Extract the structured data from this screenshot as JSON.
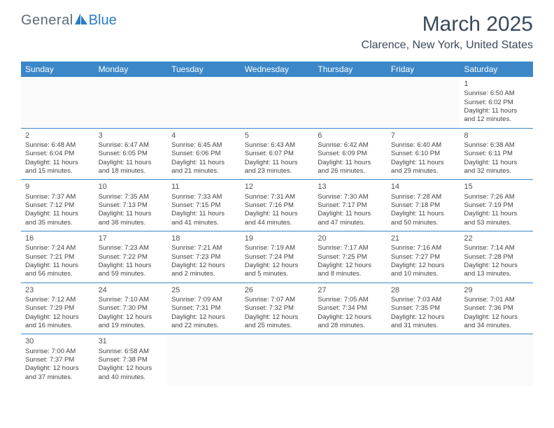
{
  "logo": {
    "general": "General",
    "blue": "Blue"
  },
  "title": "March 2025",
  "location": "Clarence, New York, United States",
  "headers": [
    "Sunday",
    "Monday",
    "Tuesday",
    "Wednesday",
    "Thursday",
    "Friday",
    "Saturday"
  ],
  "colors": {
    "header_bg": "#3b87c8",
    "header_text": "#ffffff",
    "border": "#3b87c8",
    "title_color": "#3a4a5a",
    "body_text": "#444444",
    "logo_gray": "#5b6a78",
    "logo_blue": "#2c7bc4"
  },
  "weeks": [
    [
      {
        "empty": true
      },
      {
        "empty": true
      },
      {
        "empty": true
      },
      {
        "empty": true
      },
      {
        "empty": true
      },
      {
        "empty": true
      },
      {
        "day": "1",
        "sunrise": "Sunrise: 6:50 AM",
        "sunset": "Sunset: 6:02 PM",
        "daylight1": "Daylight: 11 hours",
        "daylight2": "and 12 minutes."
      }
    ],
    [
      {
        "day": "2",
        "sunrise": "Sunrise: 6:48 AM",
        "sunset": "Sunset: 6:04 PM",
        "daylight1": "Daylight: 11 hours",
        "daylight2": "and 15 minutes."
      },
      {
        "day": "3",
        "sunrise": "Sunrise: 6:47 AM",
        "sunset": "Sunset: 6:05 PM",
        "daylight1": "Daylight: 11 hours",
        "daylight2": "and 18 minutes."
      },
      {
        "day": "4",
        "sunrise": "Sunrise: 6:45 AM",
        "sunset": "Sunset: 6:06 PM",
        "daylight1": "Daylight: 11 hours",
        "daylight2": "and 21 minutes."
      },
      {
        "day": "5",
        "sunrise": "Sunrise: 6:43 AM",
        "sunset": "Sunset: 6:07 PM",
        "daylight1": "Daylight: 11 hours",
        "daylight2": "and 23 minutes."
      },
      {
        "day": "6",
        "sunrise": "Sunrise: 6:42 AM",
        "sunset": "Sunset: 6:09 PM",
        "daylight1": "Daylight: 11 hours",
        "daylight2": "and 26 minutes."
      },
      {
        "day": "7",
        "sunrise": "Sunrise: 6:40 AM",
        "sunset": "Sunset: 6:10 PM",
        "daylight1": "Daylight: 11 hours",
        "daylight2": "and 29 minutes."
      },
      {
        "day": "8",
        "sunrise": "Sunrise: 6:38 AM",
        "sunset": "Sunset: 6:11 PM",
        "daylight1": "Daylight: 11 hours",
        "daylight2": "and 32 minutes."
      }
    ],
    [
      {
        "day": "9",
        "sunrise": "Sunrise: 7:37 AM",
        "sunset": "Sunset: 7:12 PM",
        "daylight1": "Daylight: 11 hours",
        "daylight2": "and 35 minutes."
      },
      {
        "day": "10",
        "sunrise": "Sunrise: 7:35 AM",
        "sunset": "Sunset: 7:13 PM",
        "daylight1": "Daylight: 11 hours",
        "daylight2": "and 38 minutes."
      },
      {
        "day": "11",
        "sunrise": "Sunrise: 7:33 AM",
        "sunset": "Sunset: 7:15 PM",
        "daylight1": "Daylight: 11 hours",
        "daylight2": "and 41 minutes."
      },
      {
        "day": "12",
        "sunrise": "Sunrise: 7:31 AM",
        "sunset": "Sunset: 7:16 PM",
        "daylight1": "Daylight: 11 hours",
        "daylight2": "and 44 minutes."
      },
      {
        "day": "13",
        "sunrise": "Sunrise: 7:30 AM",
        "sunset": "Sunset: 7:17 PM",
        "daylight1": "Daylight: 11 hours",
        "daylight2": "and 47 minutes."
      },
      {
        "day": "14",
        "sunrise": "Sunrise: 7:28 AM",
        "sunset": "Sunset: 7:18 PM",
        "daylight1": "Daylight: 11 hours",
        "daylight2": "and 50 minutes."
      },
      {
        "day": "15",
        "sunrise": "Sunrise: 7:26 AM",
        "sunset": "Sunset: 7:19 PM",
        "daylight1": "Daylight: 11 hours",
        "daylight2": "and 53 minutes."
      }
    ],
    [
      {
        "day": "16",
        "sunrise": "Sunrise: 7:24 AM",
        "sunset": "Sunset: 7:21 PM",
        "daylight1": "Daylight: 11 hours",
        "daylight2": "and 56 minutes."
      },
      {
        "day": "17",
        "sunrise": "Sunrise: 7:23 AM",
        "sunset": "Sunset: 7:22 PM",
        "daylight1": "Daylight: 11 hours",
        "daylight2": "and 59 minutes."
      },
      {
        "day": "18",
        "sunrise": "Sunrise: 7:21 AM",
        "sunset": "Sunset: 7:23 PM",
        "daylight1": "Daylight: 12 hours",
        "daylight2": "and 2 minutes."
      },
      {
        "day": "19",
        "sunrise": "Sunrise: 7:19 AM",
        "sunset": "Sunset: 7:24 PM",
        "daylight1": "Daylight: 12 hours",
        "daylight2": "and 5 minutes."
      },
      {
        "day": "20",
        "sunrise": "Sunrise: 7:17 AM",
        "sunset": "Sunset: 7:25 PM",
        "daylight1": "Daylight: 12 hours",
        "daylight2": "and 8 minutes."
      },
      {
        "day": "21",
        "sunrise": "Sunrise: 7:16 AM",
        "sunset": "Sunset: 7:27 PM",
        "daylight1": "Daylight: 12 hours",
        "daylight2": "and 10 minutes."
      },
      {
        "day": "22",
        "sunrise": "Sunrise: 7:14 AM",
        "sunset": "Sunset: 7:28 PM",
        "daylight1": "Daylight: 12 hours",
        "daylight2": "and 13 minutes."
      }
    ],
    [
      {
        "day": "23",
        "sunrise": "Sunrise: 7:12 AM",
        "sunset": "Sunset: 7:29 PM",
        "daylight1": "Daylight: 12 hours",
        "daylight2": "and 16 minutes."
      },
      {
        "day": "24",
        "sunrise": "Sunrise: 7:10 AM",
        "sunset": "Sunset: 7:30 PM",
        "daylight1": "Daylight: 12 hours",
        "daylight2": "and 19 minutes."
      },
      {
        "day": "25",
        "sunrise": "Sunrise: 7:09 AM",
        "sunset": "Sunset: 7:31 PM",
        "daylight1": "Daylight: 12 hours",
        "daylight2": "and 22 minutes."
      },
      {
        "day": "26",
        "sunrise": "Sunrise: 7:07 AM",
        "sunset": "Sunset: 7:32 PM",
        "daylight1": "Daylight: 12 hours",
        "daylight2": "and 25 minutes."
      },
      {
        "day": "27",
        "sunrise": "Sunrise: 7:05 AM",
        "sunset": "Sunset: 7:34 PM",
        "daylight1": "Daylight: 12 hours",
        "daylight2": "and 28 minutes."
      },
      {
        "day": "28",
        "sunrise": "Sunrise: 7:03 AM",
        "sunset": "Sunset: 7:35 PM",
        "daylight1": "Daylight: 12 hours",
        "daylight2": "and 31 minutes."
      },
      {
        "day": "29",
        "sunrise": "Sunrise: 7:01 AM",
        "sunset": "Sunset: 7:36 PM",
        "daylight1": "Daylight: 12 hours",
        "daylight2": "and 34 minutes."
      }
    ],
    [
      {
        "day": "30",
        "sunrise": "Sunrise: 7:00 AM",
        "sunset": "Sunset: 7:37 PM",
        "daylight1": "Daylight: 12 hours",
        "daylight2": "and 37 minutes."
      },
      {
        "day": "31",
        "sunrise": "Sunrise: 6:58 AM",
        "sunset": "Sunset: 7:38 PM",
        "daylight1": "Daylight: 12 hours",
        "daylight2": "and 40 minutes."
      },
      {
        "empty": true
      },
      {
        "empty": true
      },
      {
        "empty": true
      },
      {
        "empty": true
      },
      {
        "empty": true
      }
    ]
  ]
}
